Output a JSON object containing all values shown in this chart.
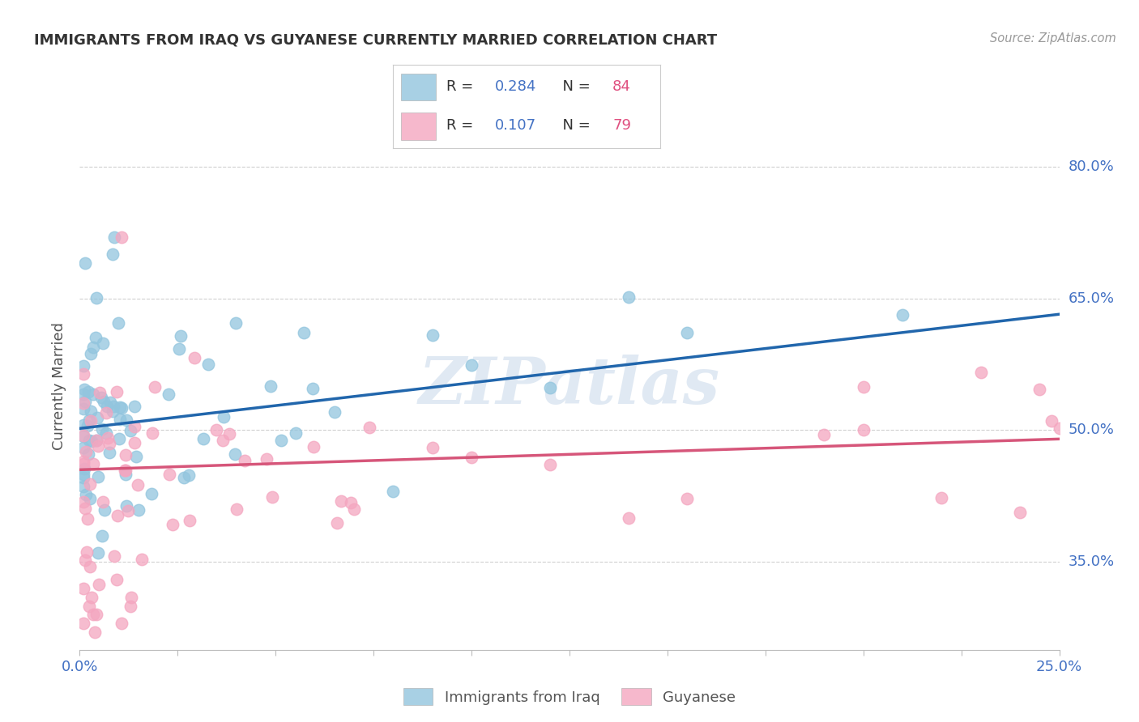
{
  "title": "IMMIGRANTS FROM IRAQ VS GUYANESE CURRENTLY MARRIED CORRELATION CHART",
  "source": "Source: ZipAtlas.com",
  "ylabel": "Currently Married",
  "ytick_vals": [
    0.35,
    0.5,
    0.65,
    0.8
  ],
  "ytick_labels": [
    "35.0%",
    "50.0%",
    "65.0%",
    "80.0%"
  ],
  "xlim": [
    0.0,
    0.25
  ],
  "ylim": [
    0.25,
    0.85
  ],
  "color_iraq": "#92c5de",
  "color_guyanese": "#f4a6c0",
  "trendline_iraq_color": "#2166ac",
  "trendline_guyanese_color": "#d6567a",
  "background_color": "#ffffff",
  "watermark": "ZIPatlas",
  "legend1_R": "0.284",
  "legend1_N": "84",
  "legend2_R": "0.107",
  "legend2_N": "79"
}
